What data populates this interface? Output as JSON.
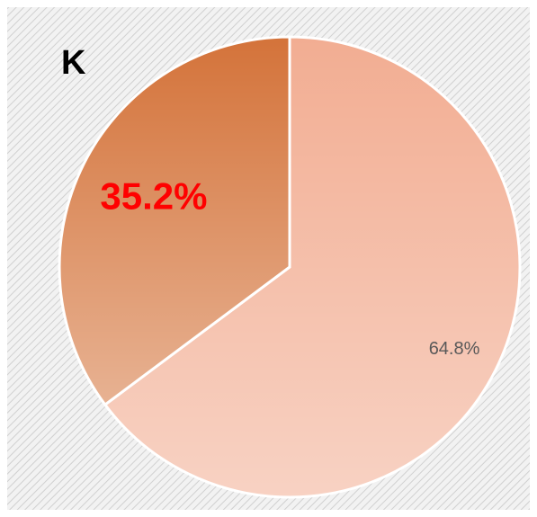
{
  "chart_data": {
    "type": "pie",
    "title": "K",
    "values": [
      64.8,
      35.2
    ],
    "value_labels": [
      "64.8%",
      "35.2%"
    ],
    "colors": [
      "#f2ad92",
      "#d4733a"
    ],
    "value_label_colors": [
      "#595959",
      "#ff0000"
    ]
  }
}
